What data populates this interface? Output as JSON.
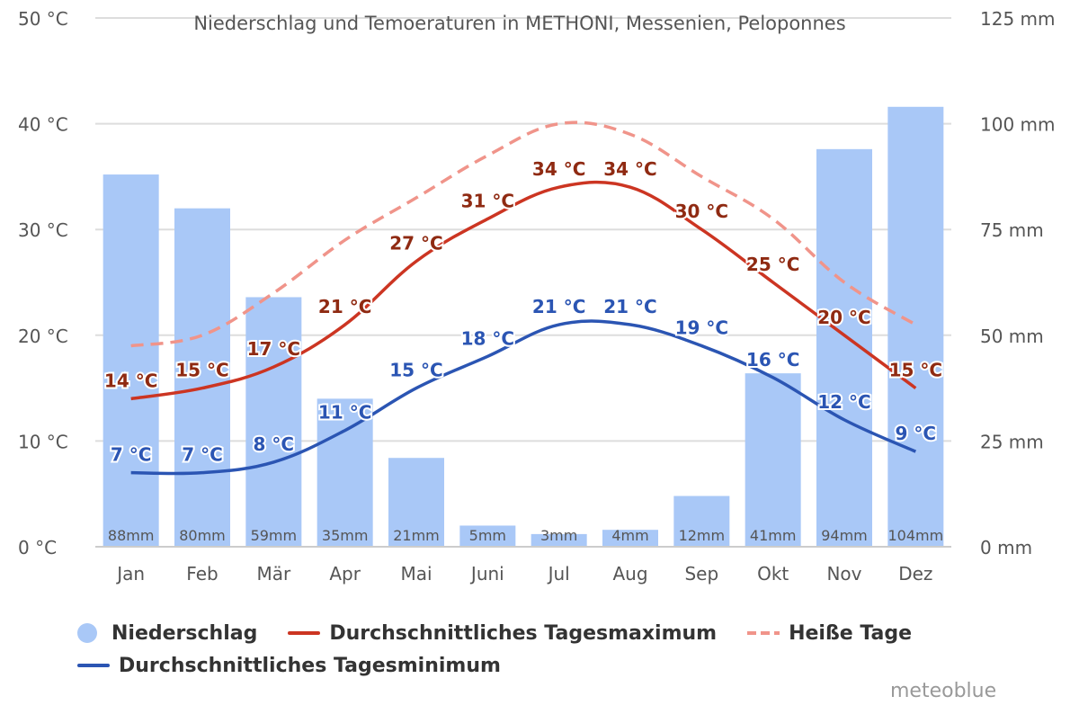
{
  "chart_data": {
    "type": "bar+line",
    "title": "Niederschlag und Temoeraturen in METHONI, Messenien, Peloponnes",
    "categories": [
      "Jan",
      "Feb",
      "Mär",
      "Apr",
      "Mai",
      "Juni",
      "Jul",
      "Aug",
      "Sep",
      "Okt",
      "Nov",
      "Dez"
    ],
    "y_left": {
      "unit": "°C",
      "range": [
        0,
        50
      ],
      "ticks": [
        "0 °C",
        "10 °C",
        "20 °C",
        "30 °C",
        "40 °C",
        "50 °C"
      ]
    },
    "y_right": {
      "unit": "mm",
      "range": [
        0,
        125
      ],
      "ticks": [
        "0 mm",
        "25 mm",
        "50 mm",
        "75 mm",
        "100 mm",
        "125 mm"
      ]
    },
    "grid": true,
    "legend_position": "bottom",
    "series": [
      {
        "name": "Niederschlag",
        "kind": "bar",
        "axis": "right",
        "color": "#a9c8f7",
        "values": [
          88,
          80,
          59,
          35,
          21,
          5,
          3,
          4,
          12,
          41,
          94,
          104
        ],
        "labels": [
          "88mm",
          "80mm",
          "59mm",
          "35mm",
          "21mm",
          "5mm",
          "3mm",
          "4mm",
          "12mm",
          "41mm",
          "94mm",
          "104mm"
        ]
      },
      {
        "name": "Durchschnittliches Tagesmaximum",
        "kind": "line",
        "axis": "left",
        "color": "#cc3522",
        "values": [
          14,
          15,
          17,
          21,
          27,
          31,
          34,
          34,
          30,
          25,
          20,
          15
        ],
        "labels": [
          "14 °C",
          "15 °C",
          "17 °C",
          "21 °C",
          "27 °C",
          "31 °C",
          "34 °C",
          "34 °C",
          "30 °C",
          "25 °C",
          "20 °C",
          "15 °C"
        ]
      },
      {
        "name": "Heiße Tage",
        "kind": "dashed-line",
        "axis": "left",
        "color": "#f0948a",
        "values": [
          19,
          20,
          24,
          29,
          33,
          37,
          40,
          39,
          35,
          31,
          25,
          21
        ]
      },
      {
        "name": "Durchschnittliches Tagesminimum",
        "kind": "line",
        "axis": "left",
        "color": "#2b55b3",
        "values": [
          7,
          7,
          8,
          11,
          15,
          18,
          21,
          21,
          19,
          16,
          12,
          9
        ],
        "labels": [
          "7 °C",
          "7 °C",
          "8 °C",
          "11 °C",
          "15 °C",
          "18 °C",
          "21 °C",
          "21 °C",
          "19 °C",
          "16 °C",
          "12 °C",
          "9 °C"
        ]
      }
    ]
  },
  "legend": {
    "precip": "Niederschlag",
    "tmax": "Durchschnittliches Tagesmaximum",
    "hot": "Heiße Tage",
    "tmin": "Durchschnittliches Tagesminimum"
  },
  "colors": {
    "bar": "#a9c8f7",
    "tmax": "#cc3522",
    "tmin": "#2b55b3",
    "hot": "#f0948a",
    "tmax_label": "#8f2a12",
    "tmin_label": "#2b55b3"
  },
  "brand": "meteoblue"
}
